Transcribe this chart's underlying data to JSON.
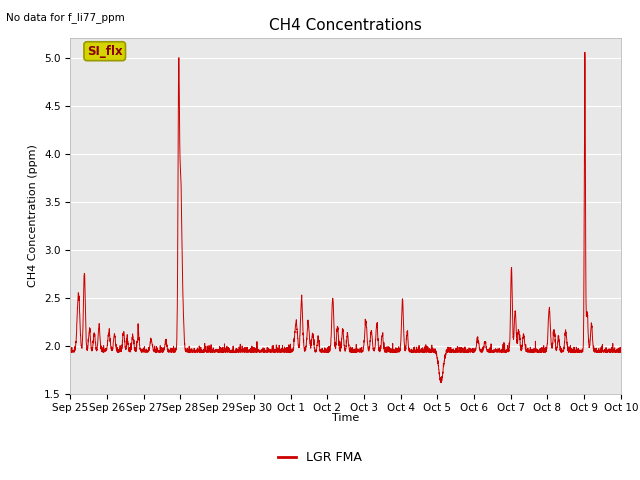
{
  "title": "CH4 Concentrations",
  "ylabel": "CH4 Concentration (ppm)",
  "xlabel": "Time",
  "top_left_note": "No data for f_li77_ppm",
  "legend_label": "LGR FMA",
  "legend_color": "#cc0000",
  "line_color": "#cc0000",
  "background_color": "#e8e8e8",
  "ylim": [
    1.5,
    5.2
  ],
  "yticks": [
    1.5,
    2.0,
    2.5,
    3.0,
    3.5,
    4.0,
    4.5,
    5.0
  ],
  "xtick_labels": [
    "Sep 25",
    "Sep 26",
    "Sep 27",
    "Sep 28",
    "Sep 29",
    "Sep 30",
    "Oct 1",
    "Oct 2",
    "Oct 3",
    "Oct 4",
    "Oct 5",
    "Oct 6",
    "Oct 7",
    "Oct 8",
    "Oct 9",
    "Oct 10"
  ],
  "si_flx_box_color": "#d4d400",
  "si_flx_text_color": "#8b0000",
  "title_fontsize": 11,
  "label_fontsize": 8,
  "tick_fontsize": 7.5,
  "note_fontsize": 7.5,
  "legend_fontsize": 9
}
